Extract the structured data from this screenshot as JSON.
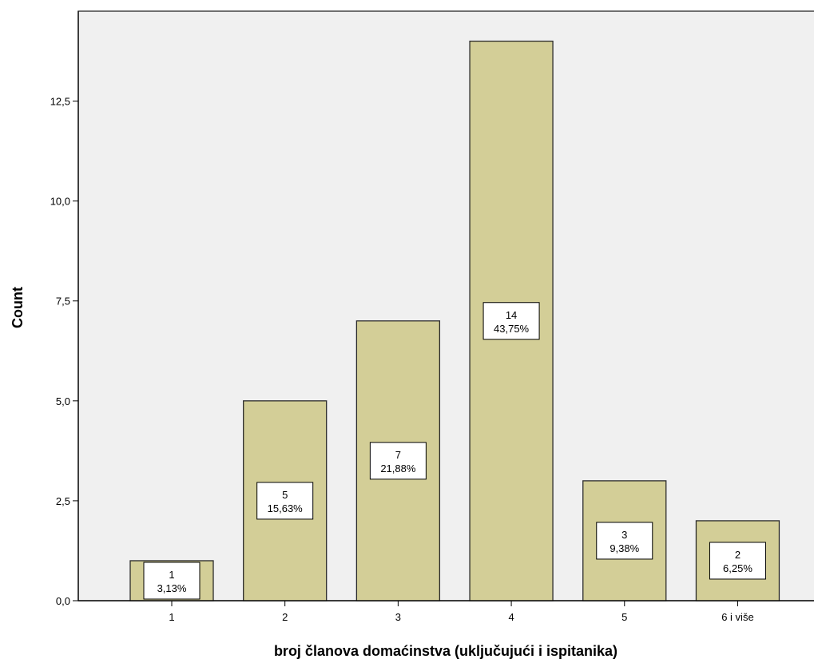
{
  "chart_data": {
    "type": "bar",
    "title": "",
    "xlabel": "broj članova domaćinstva (uključujući i ispitanika)",
    "ylabel": "Count",
    "categories": [
      "1",
      "2",
      "3",
      "4",
      "5",
      "6 i više"
    ],
    "values": [
      1,
      5,
      7,
      14,
      3,
      2
    ],
    "percent_labels": [
      "3,13%",
      "15,63%",
      "21,88%",
      "43,75%",
      "9,38%",
      "6,25%"
    ],
    "count_labels": [
      "1",
      "5",
      "7",
      "14",
      "3",
      "2"
    ],
    "ylim": [
      0,
      14.75
    ],
    "yticks": [
      0,
      2.5,
      5,
      7.5,
      10,
      12.5
    ],
    "ytick_labels": [
      "0,0",
      "2,5",
      "5,0",
      "7,5",
      "10,0",
      "12,5"
    ],
    "grid": false,
    "colors": {
      "plot_background": "#f0f0f0",
      "bar_fill": "#d3ce97",
      "bar_stroke": "#2b2b2b",
      "label_box_fill": "#ffffff"
    }
  }
}
